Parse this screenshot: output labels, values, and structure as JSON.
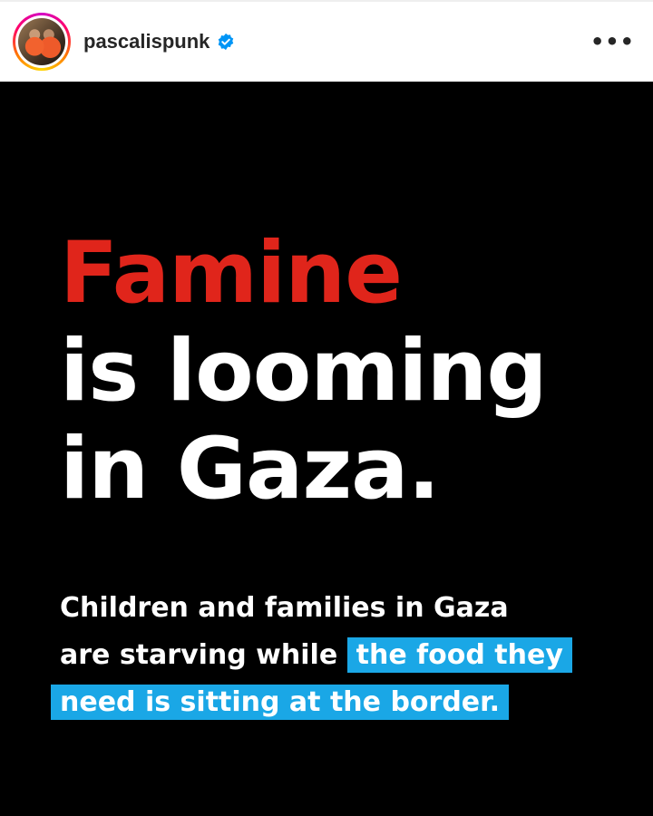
{
  "header": {
    "username": "pascalispunk",
    "verified": true,
    "verified_icon": "verified-badge-icon",
    "more_icon": "more-horizontal-icon",
    "more_label": "•••"
  },
  "post": {
    "headline_line1": "Famine",
    "headline_line2": "is looming",
    "headline_line3": "in Gaza.",
    "body_line1": "Children and families in Gaza",
    "body_line2_plain": "are starving while",
    "body_line2_highlight": "the food they",
    "body_line3_highlight": "need is sitting at the border.",
    "colors": {
      "background": "#000000",
      "headline_accent": "#e0251b",
      "highlight": "#1aa7e6",
      "text": "#ffffff"
    }
  }
}
